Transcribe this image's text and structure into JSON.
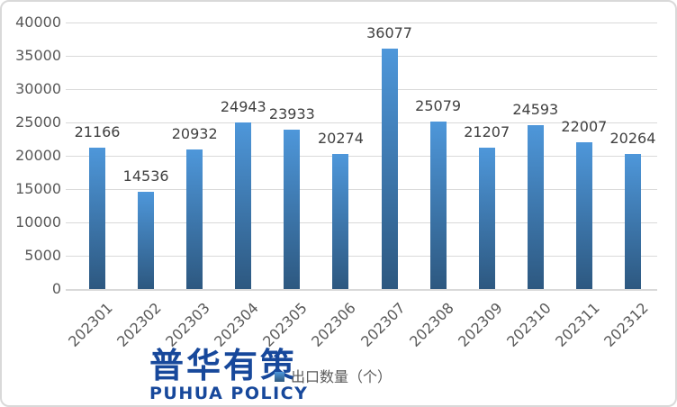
{
  "chart_data": {
    "type": "bar",
    "title": "",
    "categories": [
      "202301",
      "202302",
      "202303",
      "202304",
      "202305",
      "202306",
      "202307",
      "202308",
      "202309",
      "202310",
      "202311",
      "202312"
    ],
    "values": [
      21166,
      14536,
      20932,
      24943,
      23933,
      20274,
      36077,
      25079,
      21207,
      24593,
      22007,
      20264
    ],
    "series_name": "出口数量（个）",
    "xlabel": "",
    "ylabel": "",
    "ylim": [
      0,
      40000
    ],
    "ytick_step": 5000,
    "grid": true,
    "data_labels": true,
    "legend_position": "bottom",
    "x_tick_rotation": 45
  },
  "colors": {
    "bar_gradient_top": "#4E97DA",
    "bar_gradient_bottom": "#2D5880",
    "gridline": "#D9D9D9",
    "axis_label": "#595959",
    "data_label": "#404040",
    "logo_blue": "#17489B"
  },
  "legend": {
    "label": "出口数量（个）"
  },
  "logo": {
    "cn": "普华有策",
    "en": "PUHUA POLICY"
  }
}
